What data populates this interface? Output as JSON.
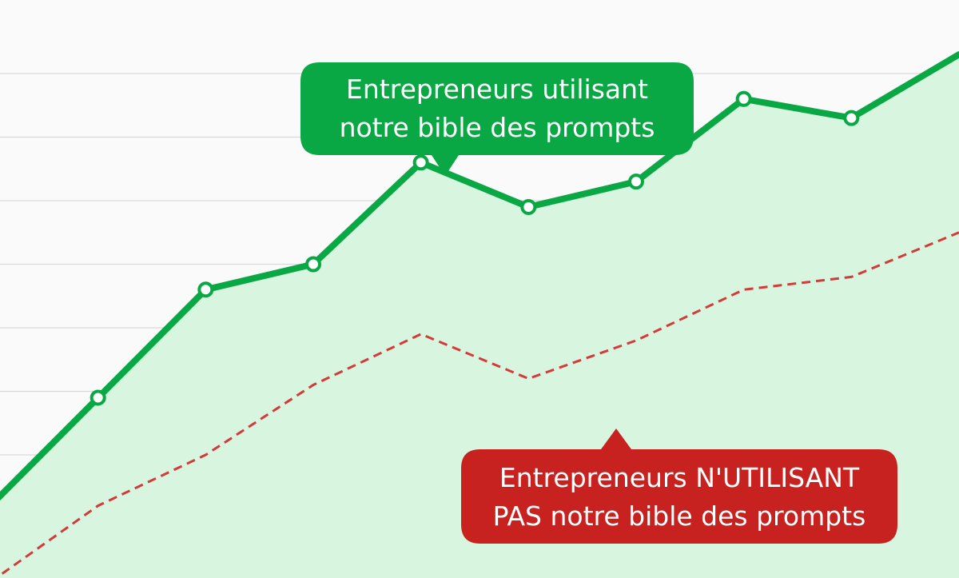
{
  "colors": {
    "background": "#fafafa",
    "grid": "#d9d9d9",
    "green_line": "#0aa844",
    "green_fill": "#d8f5e0",
    "red_line": "#d33a3a",
    "red_fill": "#f9c3c0",
    "green_callout": "#0aa844",
    "red_callout": "#c7221f"
  },
  "chart_data": {
    "type": "area",
    "title": "",
    "xlabel": "",
    "ylabel": "",
    "grid": true,
    "x": [
      0,
      1,
      2,
      3,
      4,
      5,
      6,
      7,
      8,
      9
    ],
    "xlim": [
      0,
      9
    ],
    "ylim": [
      0,
      8
    ],
    "series": [
      {
        "style": "solid-line-with-markers",
        "values": [
          1.2,
          2.9,
          4.6,
          5.0,
          6.6,
          5.9,
          6.3,
          7.6,
          7.3,
          8.3
        ]
      },
      {
        "style": "dashed-line",
        "values": [
          0.0,
          1.2,
          2.0,
          3.1,
          3.9,
          3.2,
          3.8,
          4.6,
          4.8,
          5.5
        ]
      }
    ],
    "annotations": [
      {
        "text_lines": [
          "Entrepreneurs utilisant",
          "notre bible des prompts"
        ],
        "series": 0
      },
      {
        "text_lines": [
          "Entrepreneurs N'UTILISANT",
          "PAS notre bible des prompts"
        ],
        "series": 1
      }
    ]
  }
}
